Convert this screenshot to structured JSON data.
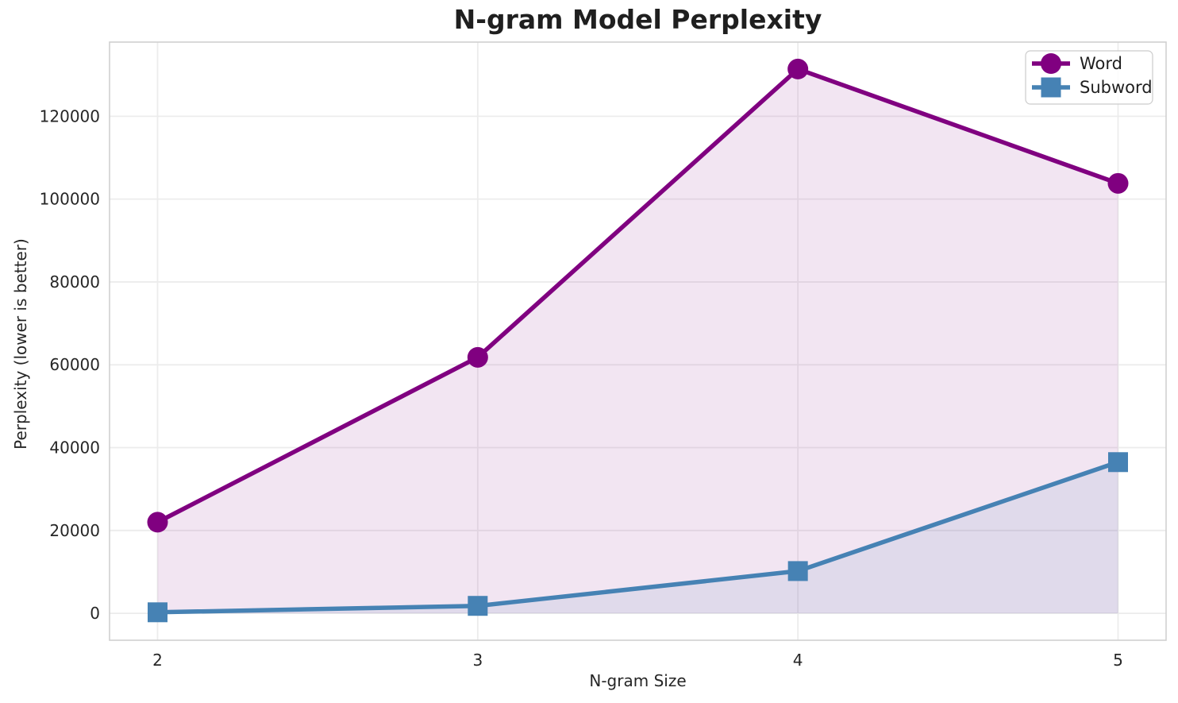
{
  "chart_data": {
    "type": "line",
    "title": "N-gram Model Perplexity",
    "xlabel": "N-gram Size",
    "ylabel": "Perplexity (lower is better)",
    "x": [
      2,
      3,
      4,
      5
    ],
    "x_tick_labels": [
      "2",
      "3",
      "4",
      "5"
    ],
    "y_ticks": [
      0,
      20000,
      40000,
      60000,
      80000,
      100000,
      120000
    ],
    "y_tick_labels": [
      "0",
      "20000",
      "40000",
      "60000",
      "80000",
      "100000",
      "120000"
    ],
    "xlim": [
      1.85,
      5.15
    ],
    "ylim": [
      -6500,
      137900
    ],
    "grid": true,
    "legend_position": "upper right",
    "series": [
      {
        "name": "Word",
        "color": "#800080",
        "marker": "circle",
        "values": [
          22000,
          61800,
          131400,
          103800
        ],
        "fill_opacity": 0.1,
        "fill_to_zero": true
      },
      {
        "name": "Subword",
        "color": "#4682B4",
        "marker": "square",
        "values": [
          250,
          1800,
          10200,
          36500
        ],
        "fill_opacity": 0.1,
        "fill_to_zero": true
      }
    ],
    "style": {
      "grid_color": "#ececec",
      "spine_color": "#d0d0d0",
      "text_color": "#262626",
      "background_color": "#ffffff",
      "legend_border_color": "#cccccc"
    }
  }
}
